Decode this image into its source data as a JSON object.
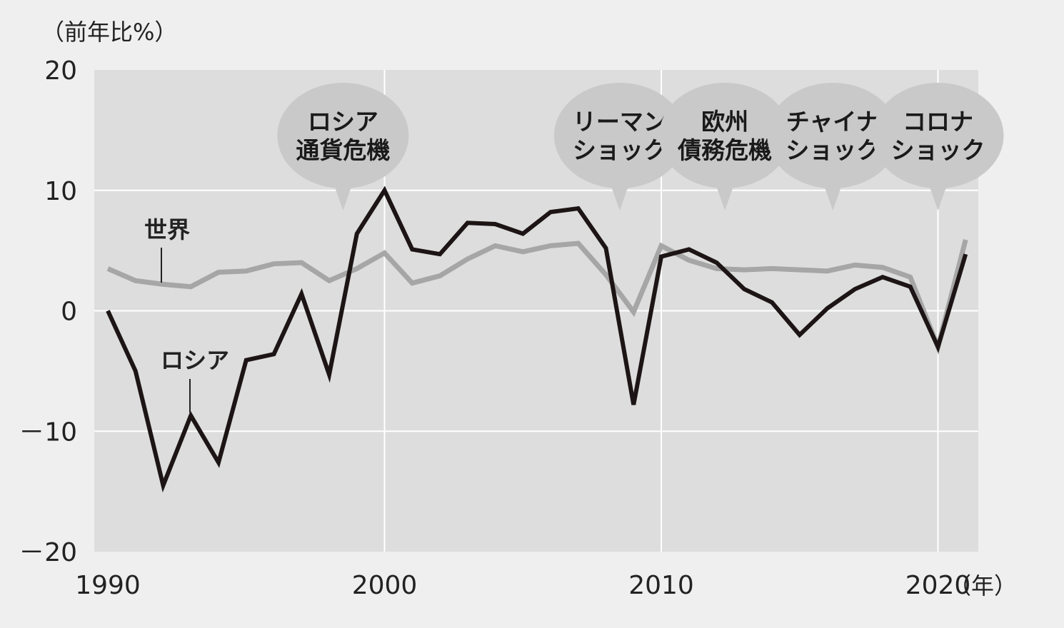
{
  "chart_data": {
    "type": "line",
    "y_unit_label": "（前年比%）",
    "x_unit_label": "（年）",
    "ylim": [
      -20,
      20
    ],
    "xlim": [
      1990,
      2022
    ],
    "y_ticks": [
      {
        "value": 20,
        "label": "20"
      },
      {
        "value": 10,
        "label": "10"
      },
      {
        "value": 0,
        "label": "0"
      },
      {
        "value": -10,
        "label": "－10"
      },
      {
        "value": -20,
        "label": "－20"
      }
    ],
    "x_ticks": [
      {
        "value": 1990,
        "label": "1990"
      },
      {
        "value": 2000,
        "label": "2000"
      },
      {
        "value": 2010,
        "label": "2010"
      },
      {
        "value": 2020,
        "label": "2020"
      }
    ],
    "x": [
      1990,
      1991,
      1992,
      1993,
      1994,
      1995,
      1996,
      1997,
      1998,
      1999,
      2000,
      2001,
      2002,
      2003,
      2004,
      2005,
      2006,
      2007,
      2008,
      2009,
      2010,
      2011,
      2012,
      2013,
      2014,
      2015,
      2016,
      2017,
      2018,
      2019,
      2020,
      2021
    ],
    "series": [
      {
        "name": "世界",
        "color": "#a6a6a6",
        "values": [
          3.5,
          2.5,
          2.2,
          2.0,
          3.2,
          3.3,
          3.9,
          4.0,
          2.5,
          3.5,
          4.8,
          2.3,
          2.9,
          4.3,
          5.4,
          4.9,
          5.4,
          5.6,
          3.0,
          -0.1,
          5.4,
          4.2,
          3.5,
          3.4,
          3.5,
          3.4,
          3.3,
          3.8,
          3.6,
          2.8,
          -3.0,
          5.9
        ]
      },
      {
        "name": "ロシア",
        "color": "#1c1415",
        "values": [
          0.0,
          -5.0,
          -14.5,
          -8.7,
          -12.6,
          -4.1,
          -3.6,
          1.4,
          -5.3,
          6.4,
          10.0,
          5.1,
          4.7,
          7.3,
          7.2,
          6.4,
          8.2,
          8.5,
          5.2,
          -7.8,
          4.5,
          5.1,
          4.0,
          1.8,
          0.7,
          -2.0,
          0.2,
          1.8,
          2.8,
          2.0,
          -3.0,
          4.7
        ]
      }
    ],
    "annotations": [
      {
        "x": 1998.5,
        "lines": [
          "ロシア",
          "通貨危機"
        ]
      },
      {
        "x": 2008.5,
        "lines": [
          "リーマン",
          "ショック"
        ]
      },
      {
        "x": 2012.3,
        "lines": [
          "欧州",
          "債務危機"
        ]
      },
      {
        "x": 2016.2,
        "lines": [
          "チャイナ",
          "ショック"
        ]
      },
      {
        "x": 2020.0,
        "lines": [
          "コロナ",
          "ショック"
        ]
      }
    ]
  }
}
